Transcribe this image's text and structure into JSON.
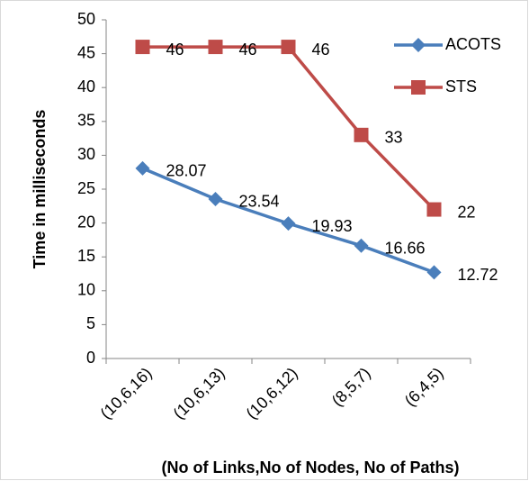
{
  "chart_data": {
    "type": "line",
    "categories": [
      "(10,6,16)",
      "(10,6,13)",
      "(10,6,12)",
      "(8,5,7)",
      "(6,4,5)"
    ],
    "series": [
      {
        "name": "ACOTS",
        "color": "#4a7ebb",
        "marker": "diamond",
        "values": [
          28.07,
          23.54,
          19.93,
          16.66,
          12.72
        ]
      },
      {
        "name": "STS",
        "color": "#be4b48",
        "marker": "square",
        "values": [
          46,
          46,
          46,
          33,
          22
        ]
      }
    ],
    "ylabel": "Time in milliseconds",
    "xlabel": "(No of Links,No of Nodes, No of Paths)",
    "ylim": [
      0,
      50
    ],
    "yticks": [
      0,
      5,
      10,
      15,
      20,
      25,
      30,
      35,
      40,
      45,
      50
    ],
    "legend": "right",
    "data_labels": true
  }
}
